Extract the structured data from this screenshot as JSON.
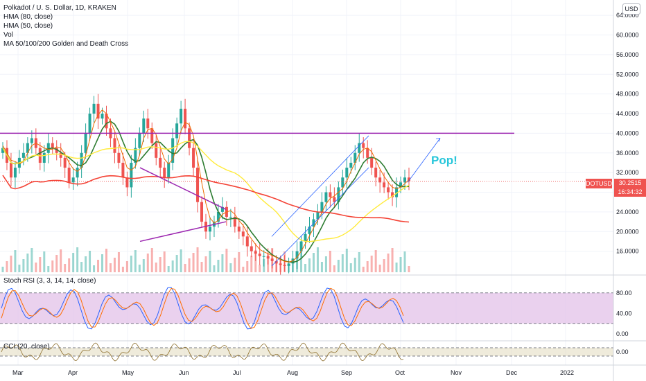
{
  "legend": {
    "title": "Polkadot / U. S. Dollar, 1D, KRAKEN",
    "indicators": [
      "HMA (80, close)",
      "HMA (50, close)",
      "Vol",
      "MA 50/100/200 Golden and Death Cross"
    ]
  },
  "currency": "USD",
  "annotation": "Pop!",
  "price_tag": {
    "symbol": "DOTUSD",
    "price": "30.2515",
    "countdown": "16:34:32"
  },
  "panes": {
    "stoch_title": "Stoch RSI (3, 3, 14, 14, close)",
    "cci_title": "CCI (20, close)"
  },
  "colors": {
    "up": "#26a69a",
    "down": "#ef5350",
    "hma80": "#2e7d32",
    "hma50": "#ef6c00",
    "ma200": "#f44336",
    "ma100": "#ffeb3b",
    "purple": "#9c27b0",
    "blue": "#2962ff"
  },
  "chart_data": [
    {
      "type": "candlestick",
      "y_ticks": [
        "64.0000",
        "60.0000",
        "56.0000",
        "52.0000",
        "48.0000",
        "44.0000",
        "40.0000",
        "36.0000",
        "32.0000",
        "28.0000",
        "24.0000",
        "20.0000",
        "16.0000"
      ],
      "ylim": [
        12,
        66
      ],
      "x_ticks": [
        "Mar",
        "Apr",
        "May",
        "Jun",
        "Jul",
        "Aug",
        "Sep",
        "Oct",
        "Nov",
        "Dec",
        "2022"
      ],
      "close_series": [
        37,
        34,
        31,
        33,
        35,
        36,
        38,
        39,
        37,
        34,
        36,
        38,
        37,
        36,
        35,
        33,
        30,
        31,
        33,
        36,
        40,
        44,
        46,
        43,
        44,
        41,
        39,
        36,
        34,
        31,
        29,
        34,
        37,
        40,
        43,
        41,
        38,
        35,
        33,
        31,
        34,
        39,
        42,
        45,
        41,
        37,
        33,
        26,
        22,
        20,
        21,
        22,
        24,
        25,
        23,
        23,
        21,
        20,
        19,
        17,
        16,
        15.5,
        15,
        15,
        14.5,
        14,
        13.5,
        13.2,
        13,
        13.5,
        14.5,
        16,
        18,
        19.5,
        21,
        22.5,
        24,
        26,
        28,
        27,
        26,
        29,
        31,
        33,
        34,
        36,
        38,
        37,
        35,
        33,
        31,
        30,
        29,
        28,
        27,
        29,
        30,
        31,
        30.25
      ],
      "resistance_level": 40,
      "current_price": 30.2515
    },
    {
      "type": "line",
      "name": "Stoch RSI",
      "y_ticks": [
        "80.00",
        "40.00",
        "0.00"
      ],
      "bands": [
        80,
        20
      ]
    },
    {
      "type": "line",
      "name": "CCI",
      "y_ticks": [
        "0.00"
      ]
    }
  ]
}
